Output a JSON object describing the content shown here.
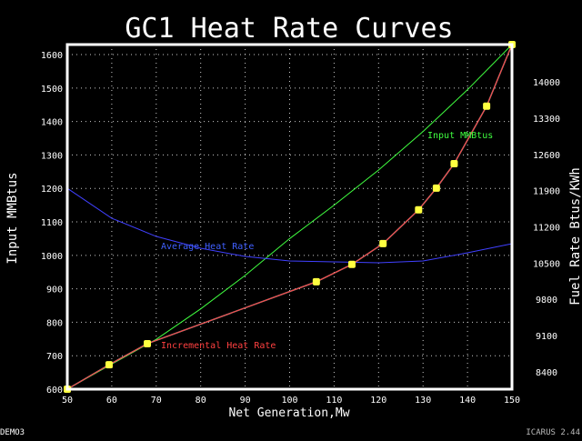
{
  "chart_data": {
    "type": "line",
    "title": "GC1 Heat Rate Curves",
    "xlabel": "Net Generation,Mw",
    "ylabel": "Input MMBtus",
    "y2label": "Fuel Rate Btus/KWh",
    "xlim": [
      50,
      150
    ],
    "ylim": [
      600,
      1630
    ],
    "y2lim": [
      8066,
      14720
    ],
    "xticks": [
      50,
      60,
      70,
      80,
      90,
      100,
      110,
      120,
      130,
      140,
      150
    ],
    "yticks": [
      600,
      700,
      800,
      900,
      1000,
      1100,
      1200,
      1300,
      1400,
      1500,
      1600
    ],
    "y2ticks": [
      8400,
      9100,
      9800,
      10500,
      11200,
      11900,
      12600,
      13300,
      14000
    ],
    "grid": true,
    "series": [
      {
        "name": "Input MMBtus",
        "axis": "left",
        "color": "#40ff40",
        "x": [
          50,
          60,
          70,
          80,
          90,
          100,
          110,
          120,
          130,
          140,
          150
        ],
        "y": [
          600,
          675,
          749,
          840,
          940,
          1050,
          1150,
          1255,
          1370,
          1495,
          1630
        ]
      },
      {
        "name": "Average Heat Rate",
        "axis": "right",
        "color": "#4040ff",
        "x": [
          50,
          60,
          70,
          80,
          90,
          100,
          110,
          120,
          130,
          140,
          150
        ],
        "y": [
          11945,
          11366,
          11015,
          10787,
          10629,
          10541,
          10524,
          10506,
          10541,
          10699,
          10875
        ]
      },
      {
        "name": "Incremental Heat Rate",
        "axis": "left",
        "color": "#ff4040",
        "marker_color": "#ffff40",
        "x": [
          50,
          59.4,
          68,
          106,
          114,
          121,
          129,
          133,
          137,
          144.3,
          150
        ],
        "y": [
          600,
          673,
          736,
          921,
          973,
          1035,
          1136,
          1201,
          1274,
          1446,
          1630
        ]
      }
    ]
  },
  "footer": {
    "left": "DEMO3",
    "right": "ICARUS 2.44"
  }
}
